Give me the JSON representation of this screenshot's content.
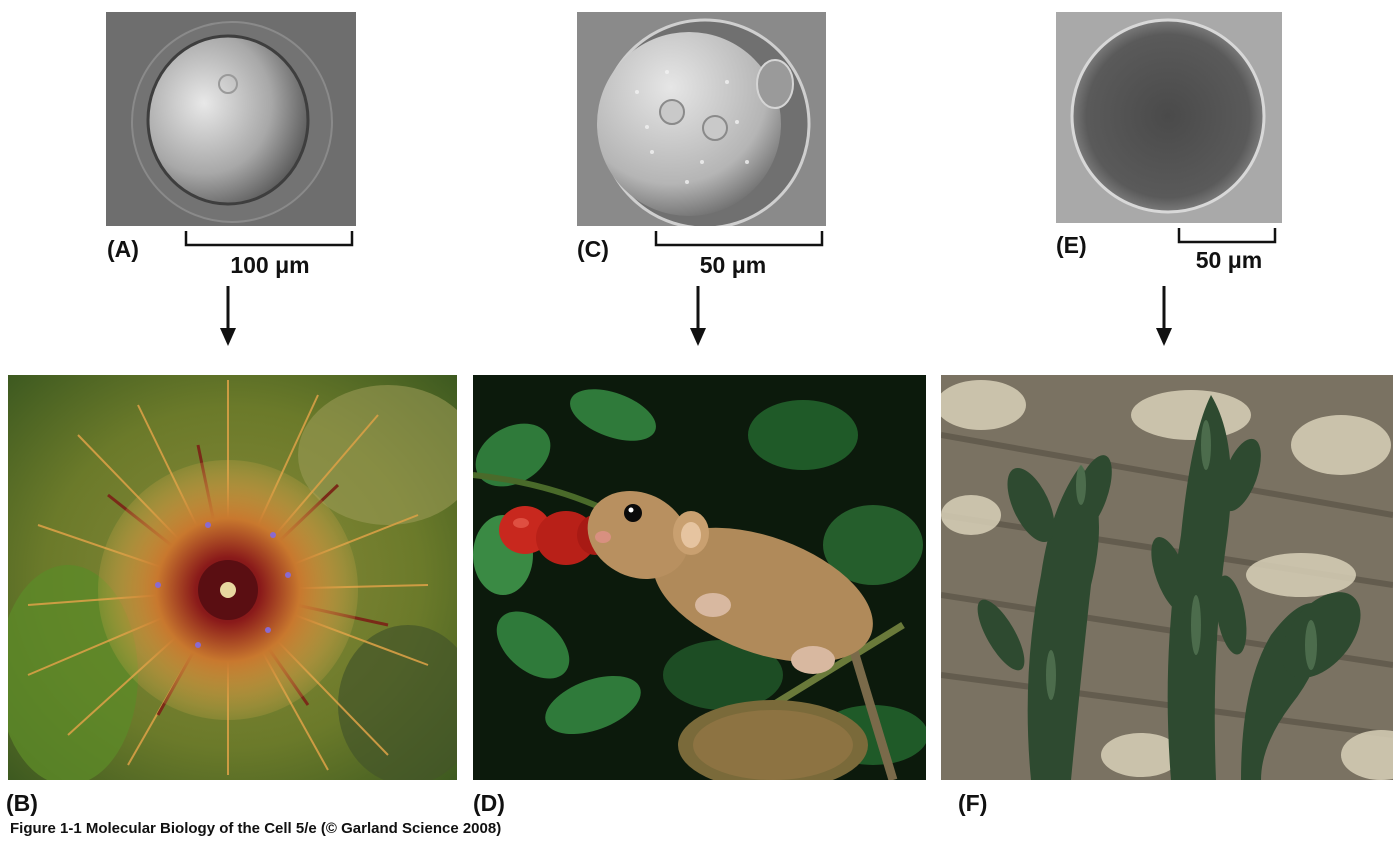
{
  "panels": {
    "a": {
      "label": "(A)",
      "scale": "100 μm"
    },
    "b": {
      "label": "(B)"
    },
    "c": {
      "label": "(C)",
      "scale": "50 μm"
    },
    "d": {
      "label": "(D)"
    },
    "e": {
      "label": "(E)",
      "scale": "50 μm"
    },
    "f": {
      "label": "(F)"
    }
  },
  "caption": "Figure 1-1  Molecular Biology of the Cell 5/e (© Garland Science 2008)",
  "colors": {
    "text": "#111111",
    "micrograph_bg": "#6f6f6f",
    "urchin_spine": "#d9a046",
    "urchin_center": "#7a1218",
    "leaf_green": "#2f7a3a",
    "rosehip_red": "#c8281e",
    "mouse_fur": "#b08a5a",
    "rock": "#8a8270",
    "seaweed": "#2e4a30"
  },
  "icons": [
    "down-arrow-icon"
  ]
}
